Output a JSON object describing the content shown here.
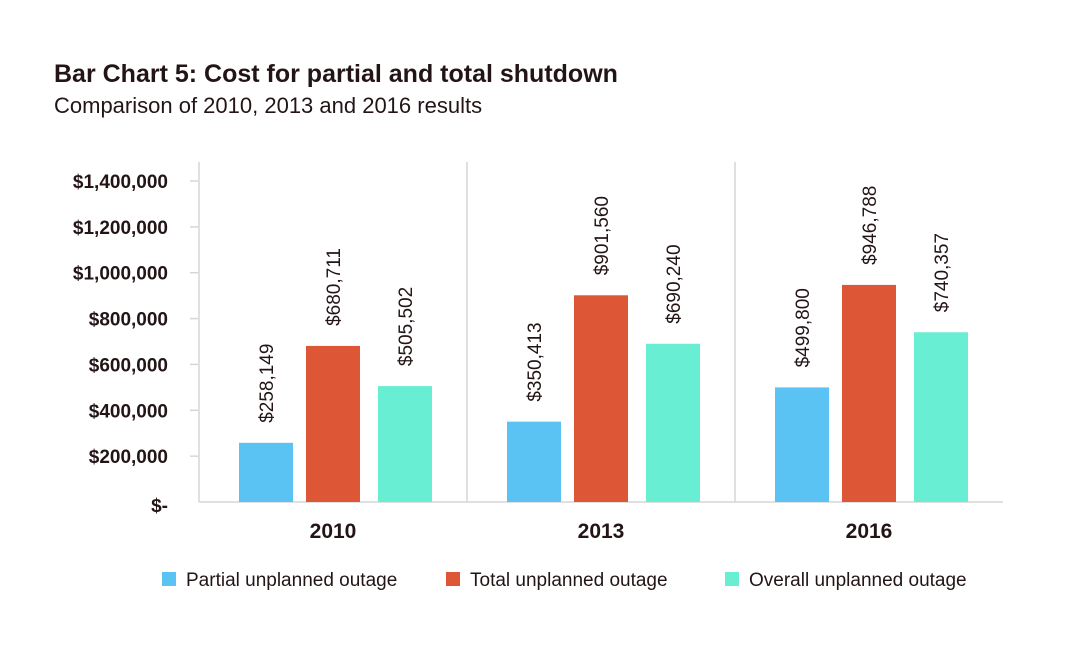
{
  "chart_data": {
    "type": "bar",
    "title": "Bar Chart 5: Cost for partial and total shutdown",
    "subtitle": "Comparison of 2010, 2013 and 2016 results",
    "categories": [
      "2010",
      "2013",
      "2016"
    ],
    "series": [
      {
        "name": "Partial unplanned outage",
        "color": "#5bc2f4",
        "values": [
          258149,
          350413,
          499800
        ],
        "labels": [
          "$258,149",
          "$350,413",
          "$499,800"
        ]
      },
      {
        "name": "Total unplanned outage",
        "color": "#dd5736",
        "values": [
          680711,
          901560,
          946788
        ],
        "labels": [
          "$680,711",
          "$901,560",
          "$946,788"
        ]
      },
      {
        "name": "Overall unplanned outage",
        "color": "#67eed3",
        "values": [
          505502,
          690240,
          740357
        ],
        "labels": [
          "$505,502",
          "$690,240",
          "$740,357"
        ]
      }
    ],
    "yticks": [
      "$-",
      "$200,000",
      "$400,000",
      "$600,000",
      "$800,000",
      "$1,000,000",
      "$1,200,000",
      "$1,400,000"
    ],
    "ylim": [
      0,
      1400000
    ],
    "grid": false,
    "legend": "bottom"
  }
}
